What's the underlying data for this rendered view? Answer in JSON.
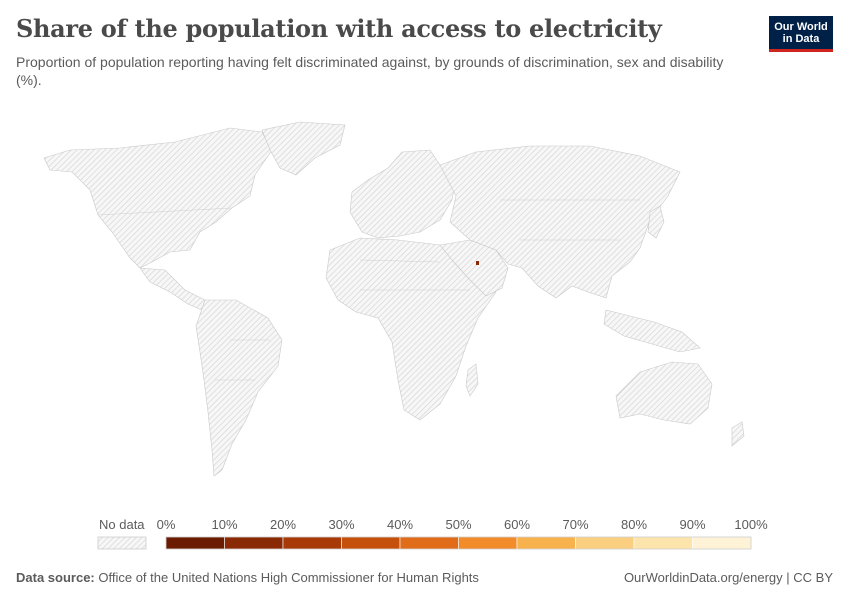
{
  "header": {
    "title": "Share of the population with access to electricity",
    "subtitle": "Proportion of population reporting having felt discriminated against, by grounds of discrimination, sex and disability (%).",
    "logo_line1": "Our World",
    "logo_line2": "in Data"
  },
  "legend": {
    "no_data_label": "No data",
    "ticks": [
      "0%",
      "10%",
      "20%",
      "30%",
      "40%",
      "50%",
      "60%",
      "70%",
      "80%",
      "90%",
      "100%"
    ],
    "bin_colors": [
      "#6b1c00",
      "#8a2a04",
      "#a73a07",
      "#c5500b",
      "#e06b18",
      "#f28c2a",
      "#f8b24d",
      "#fbcf80",
      "#fde4aa",
      "#fef3d6"
    ]
  },
  "chart_data": {
    "type": "choropleth",
    "projection": "world",
    "scale_min": 0,
    "scale_max": 100,
    "unit": "%",
    "no_data_pattern": "hatched",
    "regions": [
      {
        "name": "",
        "value": 0,
        "color": "#6b1c00"
      }
    ]
  },
  "footer": {
    "source_label": "Data source:",
    "source_text": "Office of the United Nations High Commissioner for Human Rights",
    "credit": "OurWorldinData.org/energy | CC BY"
  }
}
